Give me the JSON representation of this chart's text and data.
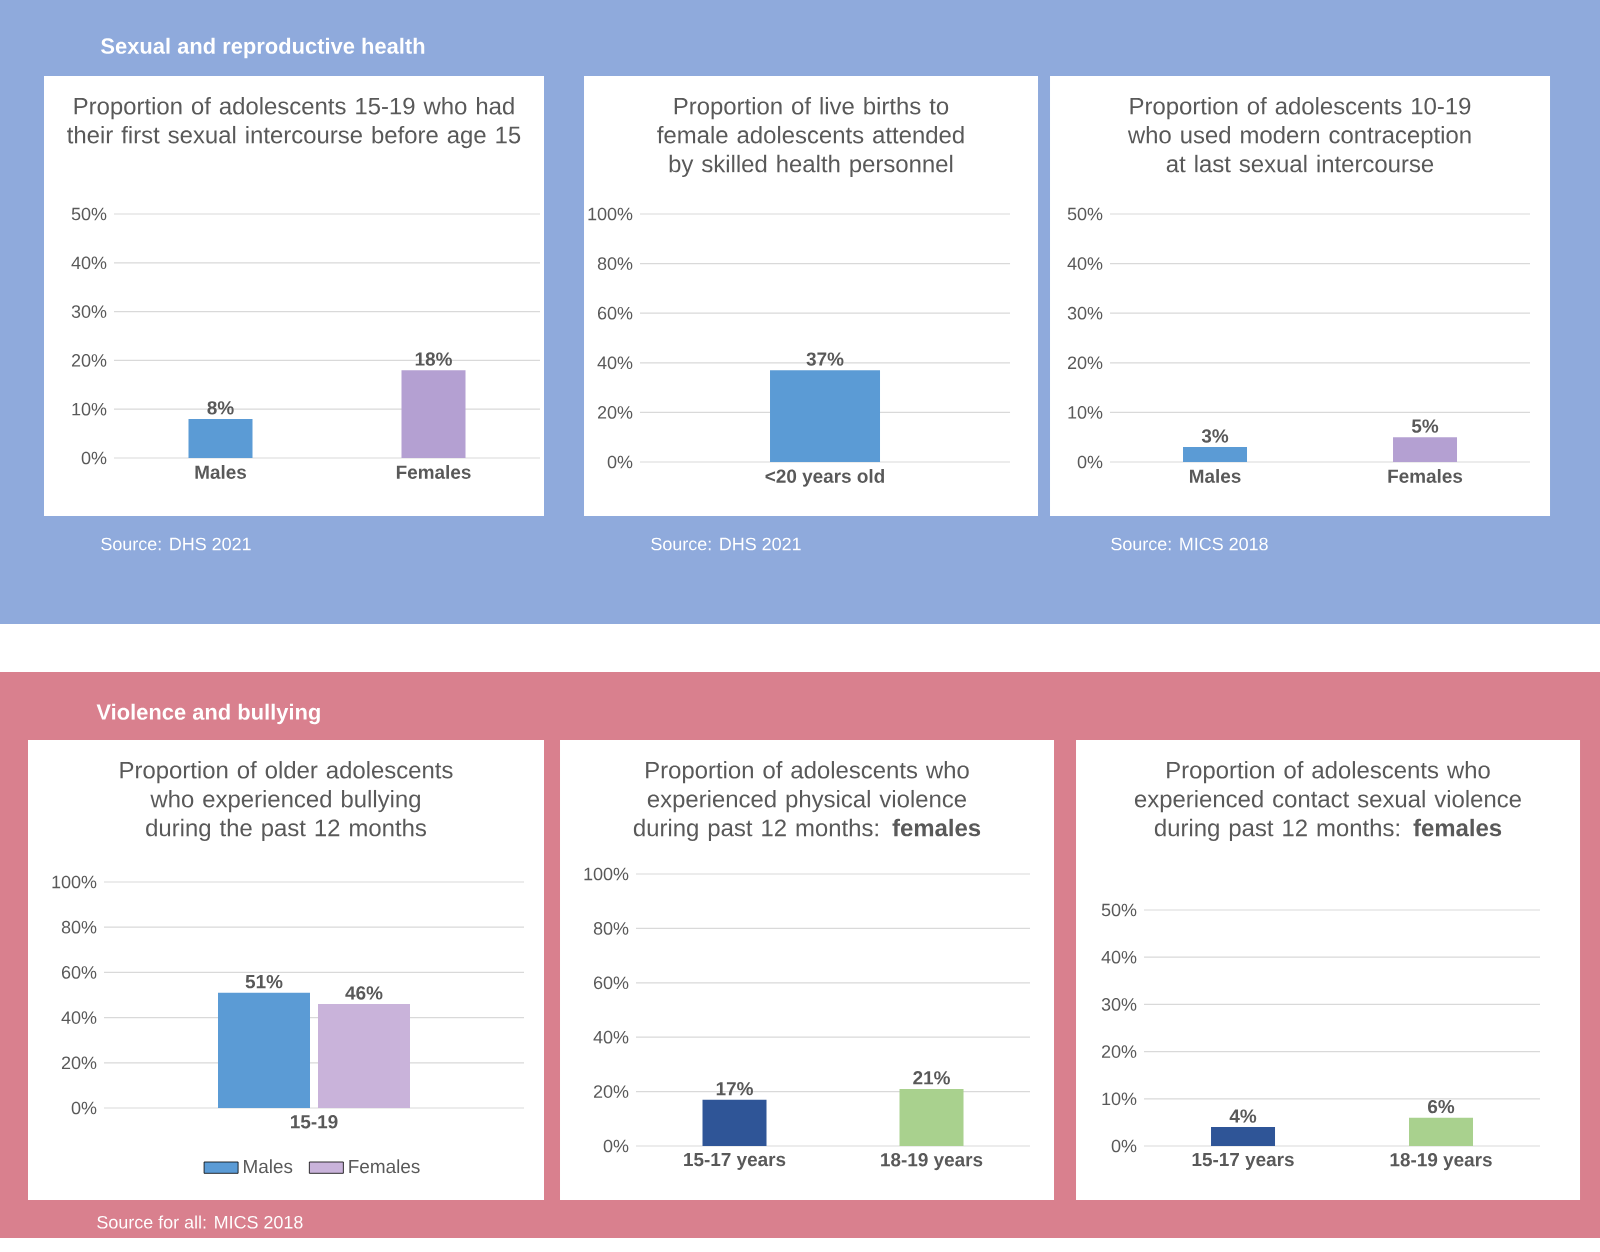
{
  "chart_data": [
    {
      "type": "bar",
      "title": "Proportion of adolescents 15-19 who had their first sexual intercourse before age 15",
      "categories": [
        "Males",
        "Females"
      ],
      "values": [
        8,
        18
      ],
      "colors": [
        "#5b9bd5",
        "#b4a0d2"
      ],
      "ylim": [
        0,
        50
      ],
      "yticks": [
        {
          "value": 0,
          "label": "0%"
        },
        {
          "value": 10,
          "label": "10%"
        },
        {
          "value": 20,
          "label": "20%"
        },
        {
          "value": 30,
          "label": "30%"
        },
        {
          "value": 40,
          "label": "40%"
        },
        {
          "value": 50,
          "label": "50%"
        }
      ],
      "grid": "y",
      "value_labels": [
        "8%",
        "18%"
      ],
      "annotations": [
        "Sexual and reproductive health",
        "Source: DHS 2021"
      ]
    },
    {
      "type": "bar",
      "title": "Proportion of live births to female adolescents attended by skilled health personnel",
      "categories": [
        "<20 years old"
      ],
      "values": [
        37
      ],
      "colors": [
        "#5b9bd5"
      ],
      "ylim": [
        0,
        100
      ],
      "yticks": [
        {
          "value": 0,
          "label": "0%"
        },
        {
          "value": 20,
          "label": "20%"
        },
        {
          "value": 40,
          "label": "40%"
        },
        {
          "value": 60,
          "label": "60%"
        },
        {
          "value": 80,
          "label": "80%"
        },
        {
          "value": 100,
          "label": "100%"
        }
      ],
      "grid": "y",
      "value_labels": [
        "37%"
      ],
      "annotations": [
        "Source: DHS 2021"
      ]
    },
    {
      "type": "bar",
      "title": "Proportion of adolescents 10-19 who used modern contraception at last sexual intercourse",
      "categories": [
        "Males",
        "Females"
      ],
      "values": [
        3,
        5
      ],
      "colors": [
        "#5b9bd5",
        "#b4a0d2"
      ],
      "ylim": [
        0,
        50
      ],
      "yticks": [
        {
          "value": 0,
          "label": "0%"
        },
        {
          "value": 10,
          "label": "10%"
        },
        {
          "value": 20,
          "label": "20%"
        },
        {
          "value": 30,
          "label": "30%"
        },
        {
          "value": 40,
          "label": "40%"
        },
        {
          "value": 50,
          "label": "50%"
        }
      ],
      "grid": "y",
      "value_labels": [
        "3%",
        "5%"
      ],
      "annotations": [
        "Source: MICS 2018"
      ]
    },
    {
      "type": "bar",
      "title": "Proportion of older adolescents who experienced bullying during the past 12 months",
      "categories": [
        "15-19"
      ],
      "series": [
        {
          "name": "Males",
          "color": "#5b9bd5",
          "values": [
            51
          ],
          "value_labels": [
            "51%"
          ]
        },
        {
          "name": "Females",
          "color": "#c9b3da",
          "values": [
            46
          ],
          "value_labels": [
            "46%"
          ]
        }
      ],
      "ylim": [
        0,
        100
      ],
      "yticks": [
        {
          "value": 0,
          "label": "0%"
        },
        {
          "value": 20,
          "label": "20%"
        },
        {
          "value": 40,
          "label": "40%"
        },
        {
          "value": 60,
          "label": "60%"
        },
        {
          "value": 80,
          "label": "80%"
        },
        {
          "value": 100,
          "label": "100%"
        }
      ],
      "grid": "y",
      "legend": "bottom",
      "annotations": [
        "Violence and bullying",
        "Source for all: MICS 2018"
      ]
    },
    {
      "type": "bar",
      "title": "Proportion of adolescents who experienced physical violence during past 12 months: **females**",
      "categories": [
        "15-17 years",
        "18-19 years"
      ],
      "values": [
        17,
        21
      ],
      "value_labels": [
        "17%",
        "21%"
      ],
      "colors": [
        "#2f5597",
        "#a9d18e"
      ],
      "ylim": [
        0,
        100
      ],
      "yticks": [
        {
          "value": 0,
          "label": "0%"
        },
        {
          "value": 20,
          "label": "20%"
        },
        {
          "value": 40,
          "label": "40%"
        },
        {
          "value": 60,
          "label": "60%"
        },
        {
          "value": 80,
          "label": "80%"
        },
        {
          "value": 100,
          "label": "100%"
        }
      ],
      "grid": "y"
    },
    {
      "type": "bar",
      "title": "Proportion of adolescents who experienced contact sexual violence during past 12 months: **females**",
      "categories": [
        "15-17 years",
        "18-19 years"
      ],
      "values": [
        4,
        6
      ],
      "value_labels": [
        "4%",
        "6%"
      ],
      "colors": [
        "#2f5597",
        "#a9d18e"
      ],
      "ylim": [
        0,
        50
      ],
      "yticks": [
        {
          "value": 0,
          "label": "0%"
        },
        {
          "value": 10,
          "label": "10%"
        },
        {
          "value": 20,
          "label": "20%"
        },
        {
          "value": 30,
          "label": "30%"
        },
        {
          "value": 40,
          "label": "40%"
        },
        {
          "value": 50,
          "label": "50%"
        }
      ],
      "grid": "y"
    }
  ]
}
